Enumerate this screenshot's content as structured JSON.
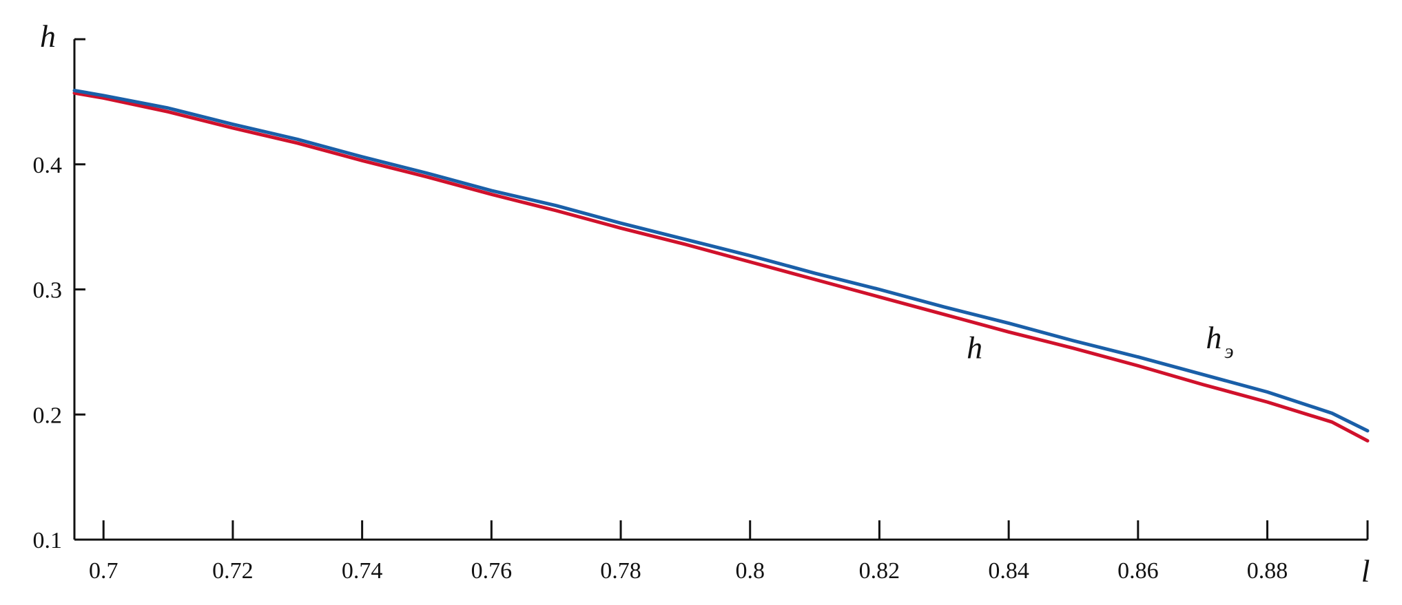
{
  "chart_data": {
    "type": "line",
    "xlabel": "l",
    "ylabel": "h",
    "xlim": [
      0.6955,
      0.8955
    ],
    "ylim": [
      0.1,
      0.5
    ],
    "x_ticks": [
      {
        "value": 0.7,
        "label": "0.7"
      },
      {
        "value": 0.72,
        "label": "0.72"
      },
      {
        "value": 0.74,
        "label": "0.74"
      },
      {
        "value": 0.76,
        "label": "0.76"
      },
      {
        "value": 0.78,
        "label": "0.78"
      },
      {
        "value": 0.8,
        "label": "0.8"
      },
      {
        "value": 0.82,
        "label": "0.82"
      },
      {
        "value": 0.84,
        "label": "0.84"
      },
      {
        "value": 0.86,
        "label": "0.86"
      },
      {
        "value": 0.88,
        "label": "0.88"
      }
    ],
    "y_ticks": [
      {
        "value": 0.1,
        "label": "0.1"
      },
      {
        "value": 0.2,
        "label": "0.2"
      },
      {
        "value": 0.3,
        "label": "0.3"
      },
      {
        "value": 0.4,
        "label": "0.4"
      }
    ],
    "grid": false,
    "series": [
      {
        "name": "h",
        "color": "#d0112b",
        "x": [
          0.6955,
          0.7,
          0.71,
          0.72,
          0.73,
          0.74,
          0.75,
          0.76,
          0.77,
          0.78,
          0.79,
          0.8,
          0.81,
          0.82,
          0.83,
          0.84,
          0.85,
          0.86,
          0.87,
          0.88,
          0.89,
          0.8955
        ],
        "y": [
          0.457,
          0.453,
          0.442,
          0.429,
          0.417,
          0.403,
          0.39,
          0.376,
          0.363,
          0.349,
          0.336,
          0.322,
          0.308,
          0.294,
          0.28,
          0.266,
          0.253,
          0.239,
          0.224,
          0.21,
          0.194,
          0.179
        ]
      },
      {
        "name": "h_э",
        "color": "#1a5fa8",
        "x": [
          0.6955,
          0.7,
          0.71,
          0.72,
          0.73,
          0.74,
          0.75,
          0.76,
          0.77,
          0.78,
          0.79,
          0.8,
          0.81,
          0.82,
          0.83,
          0.84,
          0.85,
          0.86,
          0.87,
          0.88,
          0.89,
          0.8955
        ],
        "y": [
          0.459,
          0.455,
          0.445,
          0.432,
          0.42,
          0.406,
          0.393,
          0.379,
          0.367,
          0.353,
          0.34,
          0.327,
          0.313,
          0.3,
          0.286,
          0.273,
          0.259,
          0.246,
          0.232,
          0.218,
          0.201,
          0.187
        ]
      }
    ],
    "annotations": [
      {
        "series": "h",
        "text": "h",
        "x": 0.8335,
        "y": 0.245
      },
      {
        "series": "h_э",
        "text": "h",
        "subscript": "э",
        "x": 0.8705,
        "y": 0.253
      }
    ]
  }
}
